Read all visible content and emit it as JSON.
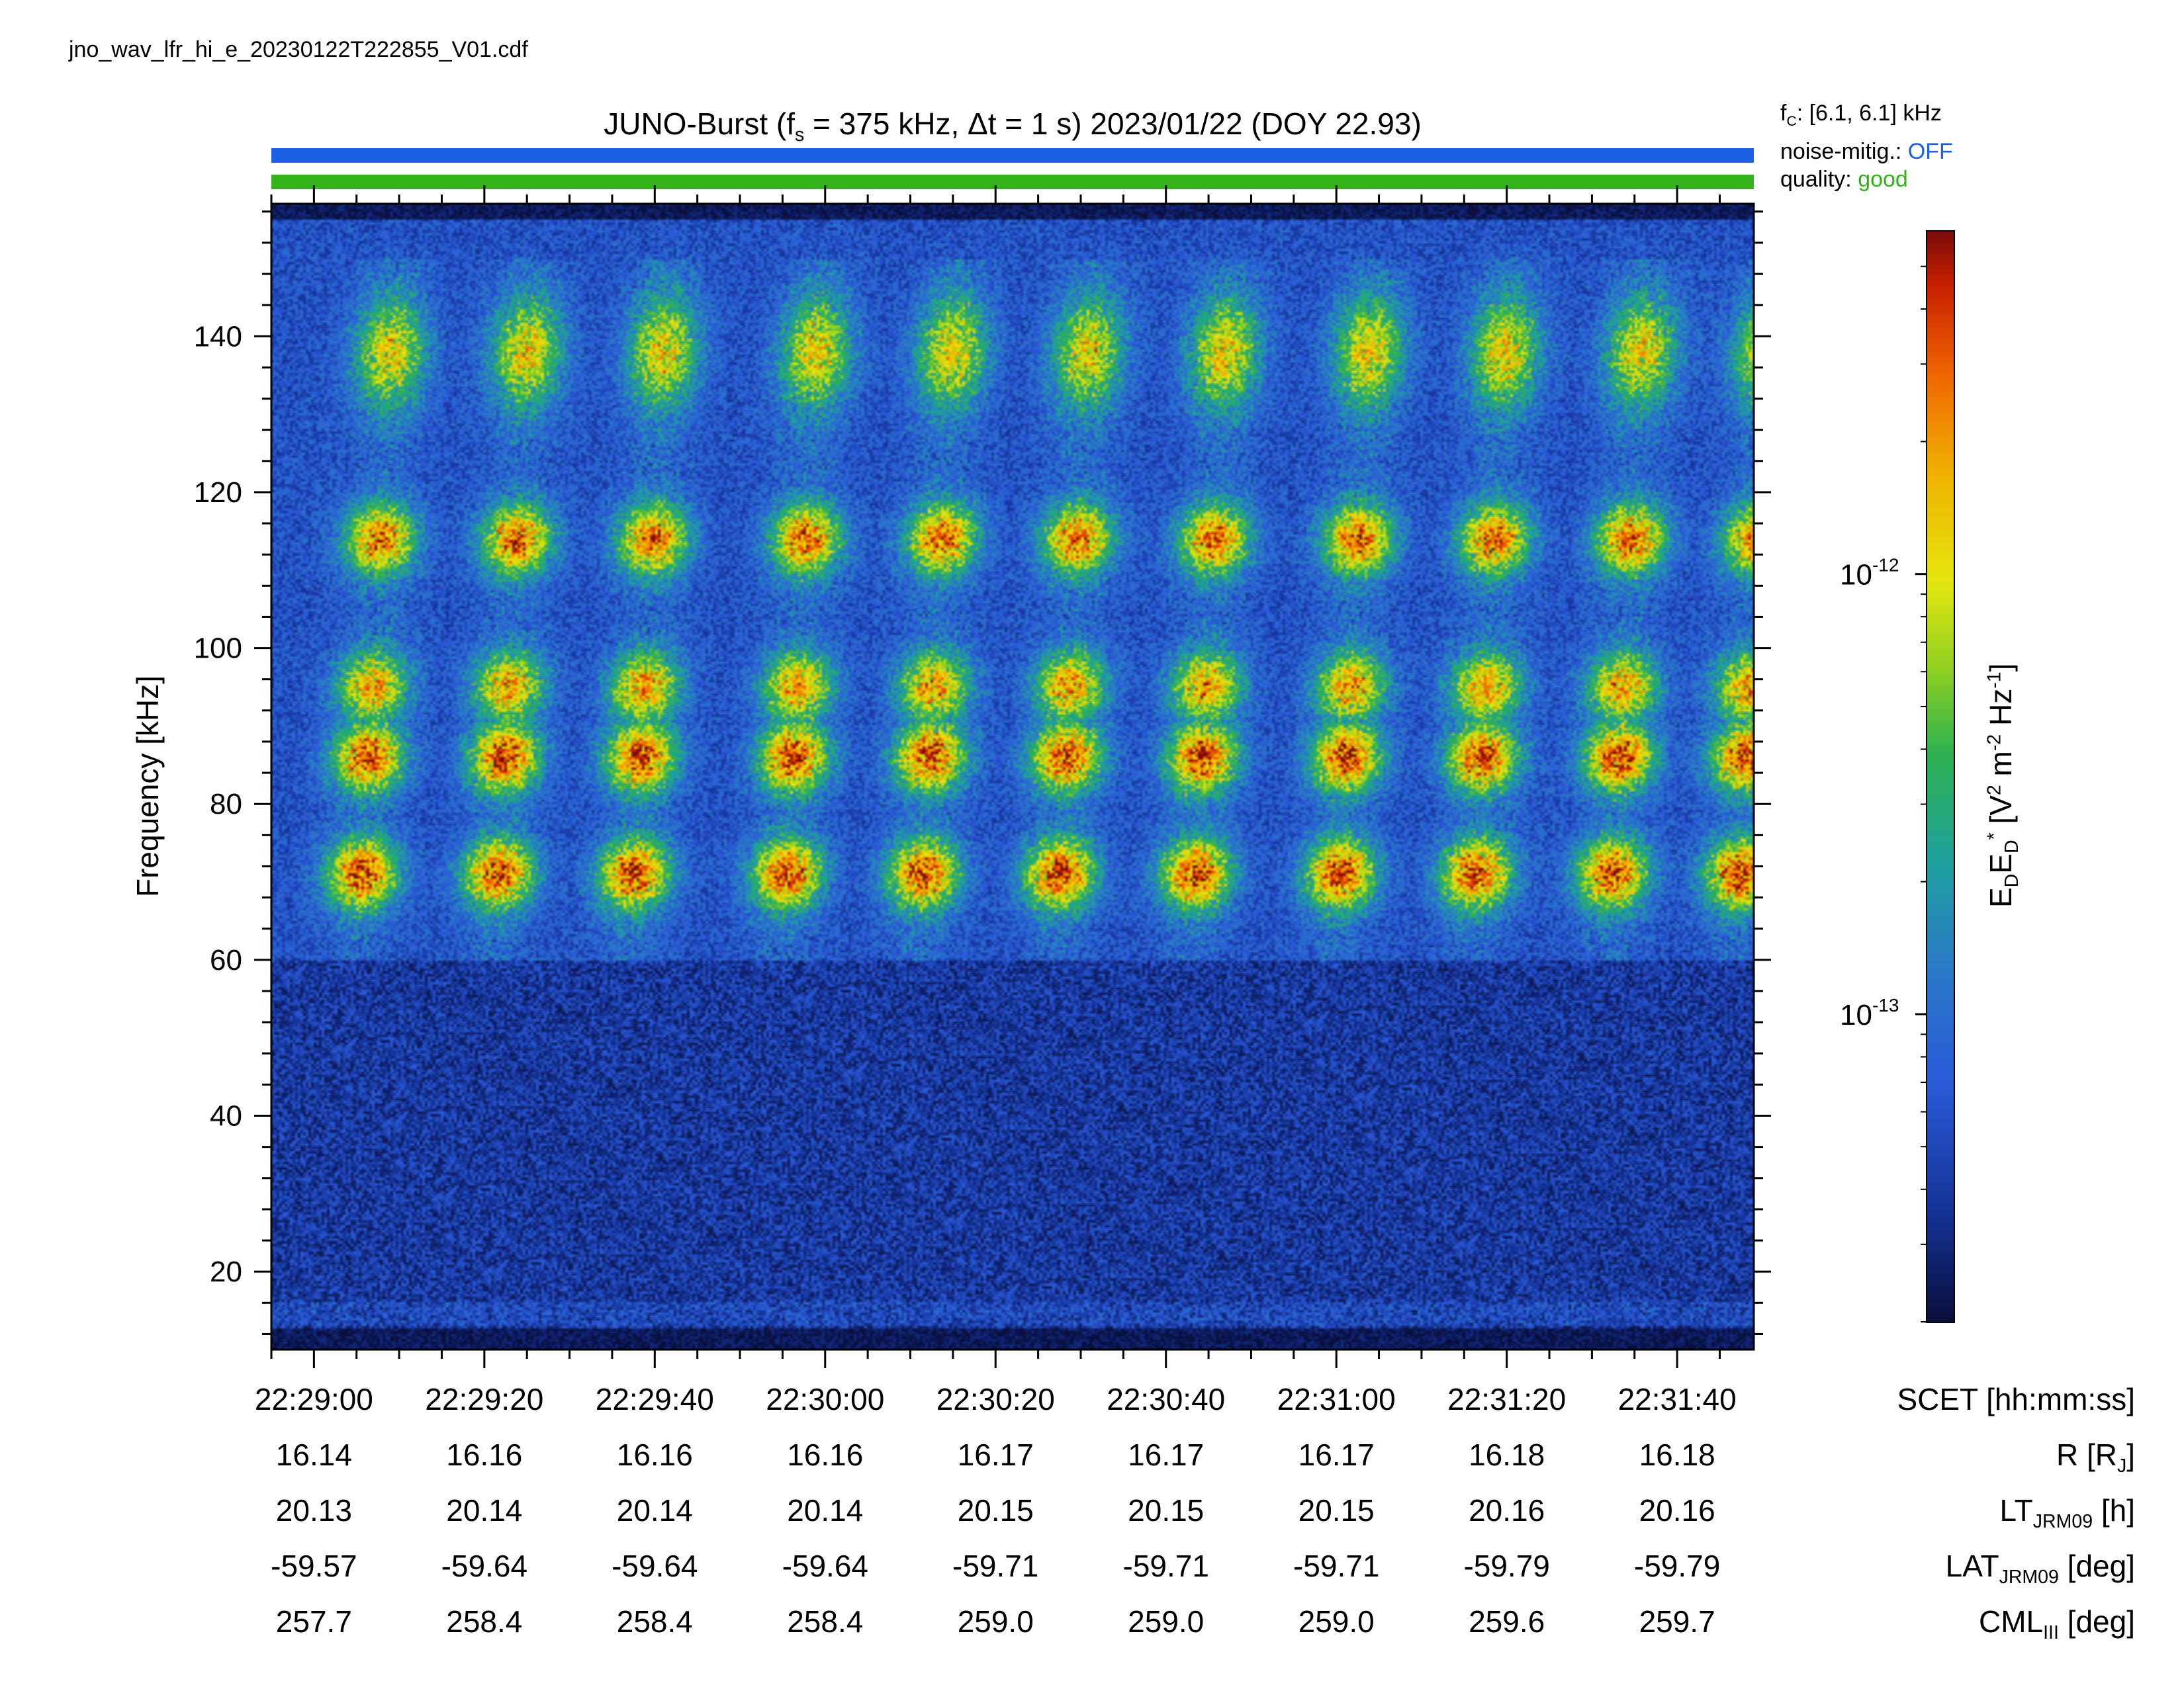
{
  "filename": "jno_wav_lfr_hi_e_20230122T222855_V01.cdf",
  "title": {
    "prefix": "JUNO-Burst (f",
    "prefix_sub": "s",
    "rest": " = 375 kHz, Δt = 1 s)  2023/01/22 (DOY 22.93)"
  },
  "status": {
    "fc_prefix": "f",
    "fc_sub": "C",
    "fc_value": ": [6.1, 6.1] kHz",
    "noise_label": "noise-mitig.:",
    "noise_value": "OFF",
    "noise_color": "#1a5fe6",
    "quality_label": "quality:",
    "quality_value": "good",
    "quality_color": "#33b21a"
  },
  "chart_data": {
    "type": "heatmap",
    "ylabel": "Frequency [kHz]",
    "ylim": [
      10,
      157
    ],
    "yticks": [
      20,
      40,
      60,
      80,
      100,
      120,
      140
    ],
    "xlim_seconds_after_222855": [
      0,
      174
    ],
    "xticks": [
      "22:29:00",
      "22:29:20",
      "22:29:40",
      "22:30:00",
      "22:30:20",
      "22:30:40",
      "22:31:00",
      "22:31:20",
      "22:31:40"
    ],
    "colorbar": {
      "label": "E_D E_D* [V^2 m^-2 Hz^-1]",
      "scale": "log",
      "ticks": [
        "10-12",
        "10-13"
      ],
      "range_approx": [
        2e-14,
        6e-12
      ]
    },
    "bursts_times_approx": [
      "22:29:05",
      "22:29:21",
      "22:29:37",
      "22:29:55",
      "22:30:11",
      "22:30:27",
      "22:30:43",
      "22:31:00",
      "22:31:16",
      "22:31:32",
      "22:31:47"
    ],
    "emission_bands_kHz": [
      {
        "name": "band-70",
        "center": 71,
        "peak_intensity": "2e-12"
      },
      {
        "name": "band-85",
        "center": 86,
        "peak_intensity": "2e-12"
      },
      {
        "name": "band-95",
        "center": 95,
        "peak_intensity": "1e-12"
      },
      {
        "name": "band-114",
        "center": 114,
        "peak_intensity": "1.5e-12"
      },
      {
        "name": "band-138",
        "center": 138,
        "peak_intensity": "6e-13"
      }
    ],
    "background_intensity_below_60kHz": "4e-14"
  },
  "ephemeris": {
    "rows": [
      {
        "label_main": "SCET [hh:mm:ss]",
        "label_sub": "",
        "label_tail": "",
        "values": [
          "22:29:00",
          "22:29:20",
          "22:29:40",
          "22:30:00",
          "22:30:20",
          "22:30:40",
          "22:31:00",
          "22:31:20",
          "22:31:40"
        ]
      },
      {
        "label_main": "R [R",
        "label_sub": "J",
        "label_tail": "]",
        "values": [
          "16.14",
          "16.16",
          "16.16",
          "16.16",
          "16.17",
          "16.17",
          "16.17",
          "16.18",
          "16.18"
        ]
      },
      {
        "label_main": "LT",
        "label_sub": "JRM09",
        "label_tail": " [h]",
        "values": [
          "20.13",
          "20.14",
          "20.14",
          "20.14",
          "20.15",
          "20.15",
          "20.15",
          "20.16",
          "20.16"
        ]
      },
      {
        "label_main": "LAT",
        "label_sub": "JRM09",
        "label_tail": " [deg]",
        "values": [
          "-59.57",
          "-59.64",
          "-59.64",
          "-59.64",
          "-59.71",
          "-59.71",
          "-59.71",
          "-59.79",
          "-59.79"
        ]
      },
      {
        "label_main": "CML",
        "label_sub": "III",
        "label_tail": " [deg]",
        "values": [
          "257.7",
          "258.4",
          "258.4",
          "258.4",
          "259.0",
          "259.0",
          "259.0",
          "259.6",
          "259.7"
        ]
      }
    ]
  },
  "colors": {
    "blue_bar": "#1a5fe6",
    "green_bar": "#33b21a"
  }
}
